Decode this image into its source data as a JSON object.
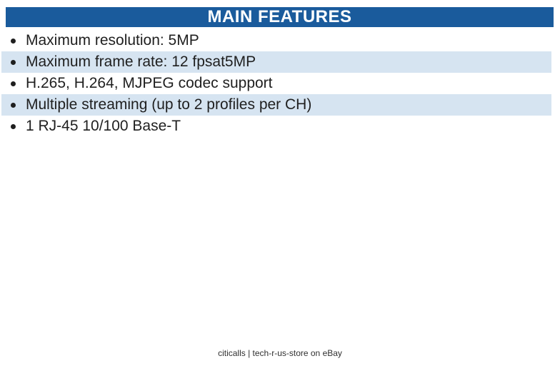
{
  "header": {
    "title": "MAIN FEATURES",
    "bg_color": "#1A5B9C",
    "text_color": "#FFFFFF"
  },
  "features": {
    "highlight_color": "#D6E4F1",
    "bullet_glyph": "•",
    "items": [
      {
        "text": "Maximum resolution: 5MP",
        "highlighted": false
      },
      {
        "text": "Maximum frame rate: 12 fpsat5MP",
        "highlighted": true
      },
      {
        "text": "H.265, H.264, MJPEG codec support",
        "highlighted": false
      },
      {
        "text": "Multiple streaming (up to 2 profiles per CH)",
        "highlighted": true
      },
      {
        "text": "1 RJ-45 10/100 Base-T",
        "highlighted": false
      }
    ]
  },
  "footer": {
    "text": "citicalls | tech-r-us-store on eBay"
  }
}
